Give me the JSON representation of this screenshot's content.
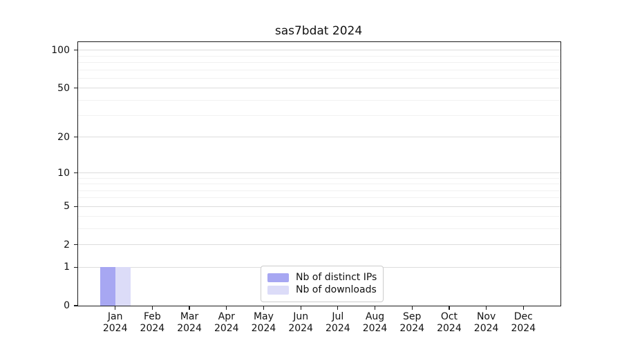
{
  "chart_data": {
    "type": "bar",
    "title": "sas7bdat 2024",
    "categories": [
      "Jan",
      "Feb",
      "Mar",
      "Apr",
      "May",
      "Jun",
      "Jul",
      "Aug",
      "Sep",
      "Oct",
      "Nov",
      "Dec"
    ],
    "year_label": "2024",
    "series": [
      {
        "name": "Nb of distinct IPs",
        "color": "#a7a7f2",
        "values": [
          1,
          0,
          0,
          0,
          0,
          0,
          0,
          0,
          0,
          0,
          0,
          0
        ]
      },
      {
        "name": "Nb of downloads",
        "color": "#dcdcf8",
        "values": [
          1,
          0,
          0,
          0,
          0,
          0,
          0,
          0,
          0,
          0,
          0,
          0
        ]
      }
    ],
    "xlabel": "",
    "ylabel": "",
    "yscale": "log1p",
    "yticks": [
      0,
      1,
      2,
      5,
      10,
      20,
      50,
      100
    ],
    "minor_gridlines": [
      3,
      4,
      6,
      7,
      8,
      9,
      30,
      40,
      60,
      70,
      80,
      90
    ],
    "ylim": [
      0,
      115
    ],
    "grid": true,
    "legend_position": "lower center"
  },
  "style": {
    "background": "#ffffff",
    "axis_color": "#1a1a1a",
    "grid_major_color": "#dcdcdc",
    "grid_minor_color": "#f1f1f1",
    "text_color": "#111111"
  }
}
